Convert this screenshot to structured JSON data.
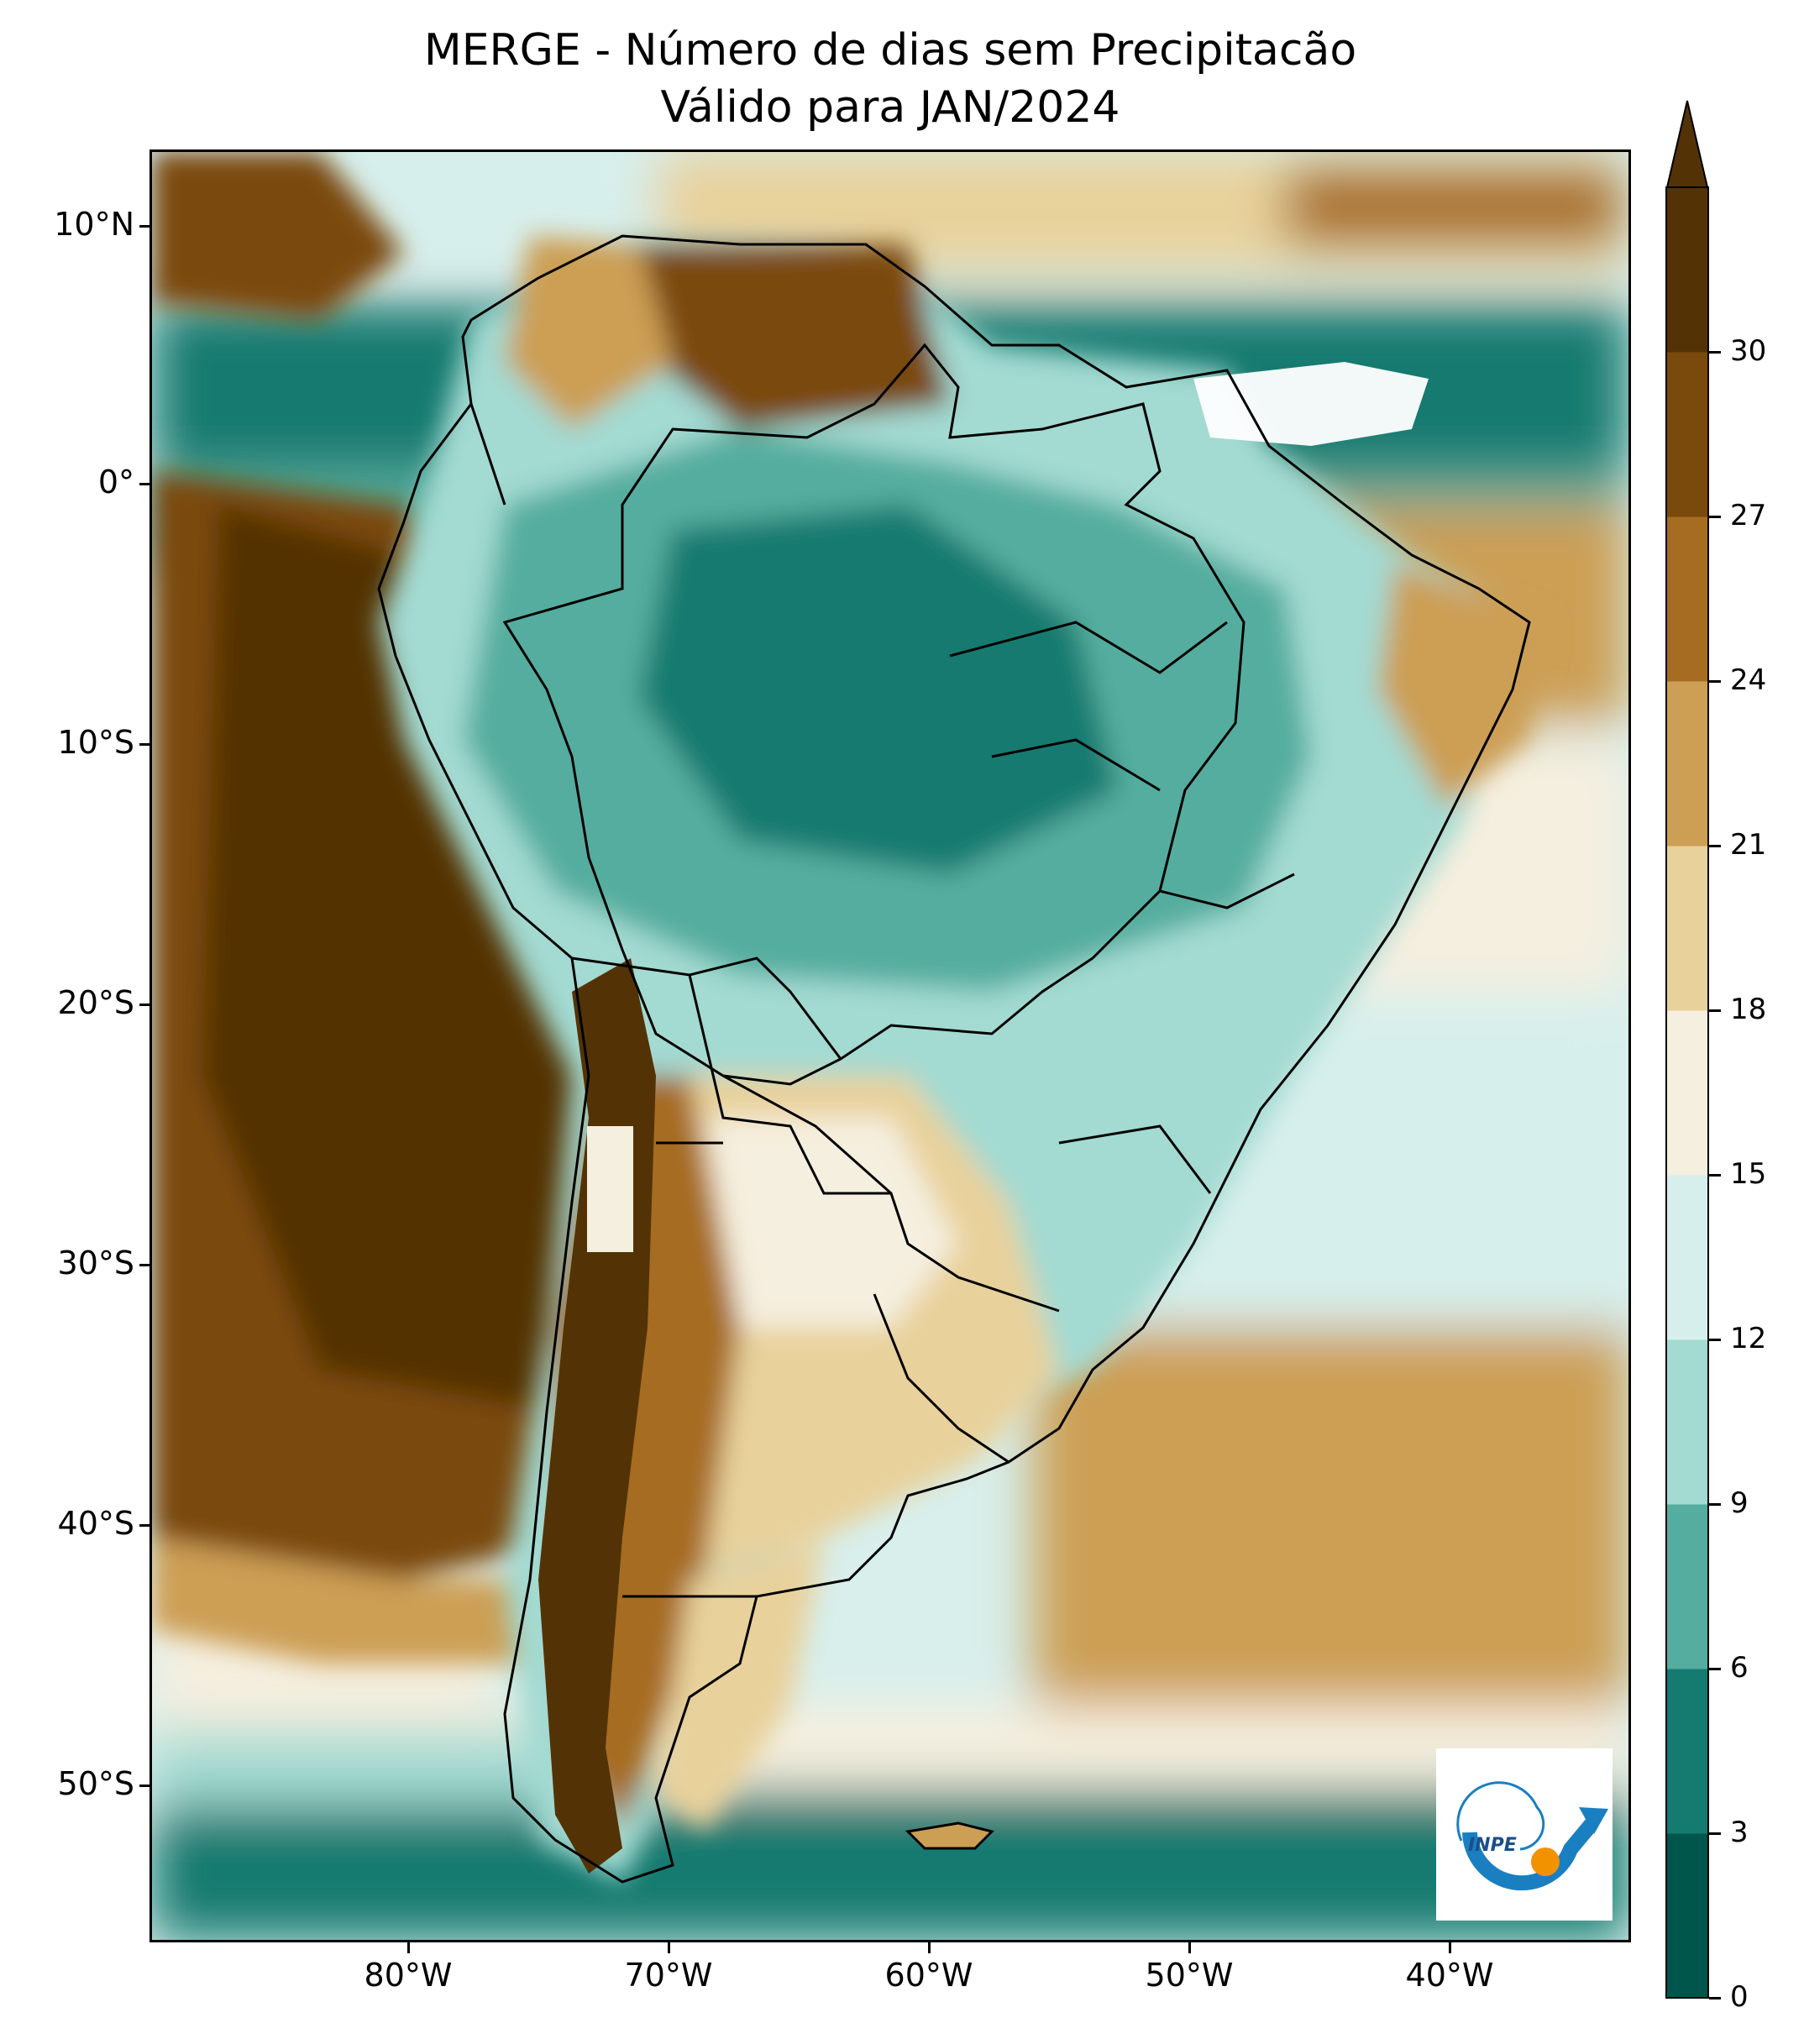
{
  "title": "MERGE - Número de dias sem Precipitacão",
  "subtitle": "Válido para JAN/2024",
  "lat_labels": [
    "10°N",
    "0°",
    "10°S",
    "20°S",
    "30°S",
    "40°S",
    "50°S"
  ],
  "lon_labels": [
    "80°W",
    "70°W",
    "60°W",
    "50°W",
    "40°W"
  ],
  "colorbar": {
    "tick_labels": [
      "0",
      "3",
      "6",
      "9",
      "12",
      "15",
      "18",
      "21",
      "24",
      "27",
      "30"
    ],
    "extend": "max",
    "colors": [
      "#01564b",
      "#157a70",
      "#55ad9f",
      "#a3dad2",
      "#d7efec",
      "#f5efdf",
      "#e8d19b",
      "#cc9f55",
      "#a66c22",
      "#7a4a0d",
      "#533305"
    ]
  },
  "map_extent": {
    "lon": [
      -90,
      -33
    ],
    "lat": [
      -56,
      13
    ]
  },
  "logo_text": "INPE"
}
